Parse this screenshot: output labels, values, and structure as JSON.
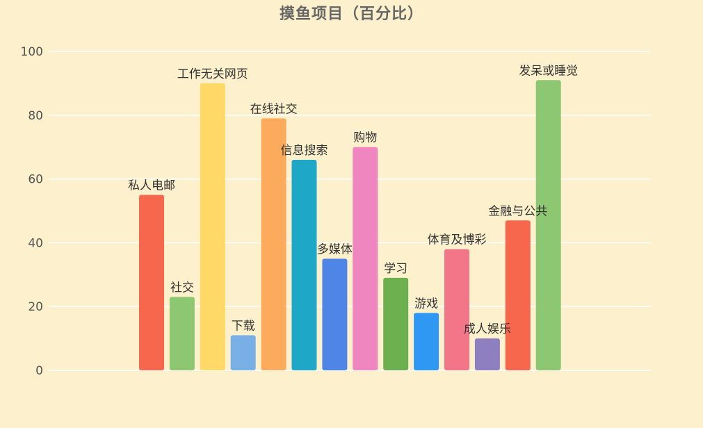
{
  "chart_data": {
    "type": "bar",
    "title": "摸鱼项目（百分比）",
    "xlabel": "",
    "ylabel": "",
    "ylim": [
      0,
      100
    ],
    "yticks": [
      0,
      20,
      40,
      60,
      80,
      100
    ],
    "grid": true,
    "categories": [
      "私人电邮",
      "社交",
      "工作无关网页",
      "下载",
      "在线社交",
      "信息搜索",
      "多媒体",
      "购物",
      "学习",
      "游戏",
      "体育及博彩",
      "成人娱乐",
      "金融与公共",
      "发呆或睡觉"
    ],
    "values": [
      55,
      23,
      90,
      11,
      79,
      66,
      35,
      70,
      29,
      18,
      38,
      10,
      47,
      91
    ],
    "colors": [
      "#f7674e",
      "#8dc772",
      "#ffd967",
      "#78b0e6",
      "#fbab5b",
      "#1ea7c6",
      "#4f85e6",
      "#f086bf",
      "#6db050",
      "#2f98f3",
      "#f37588",
      "#8e7fc1",
      "#f7674e",
      "#8dc772"
    ]
  }
}
